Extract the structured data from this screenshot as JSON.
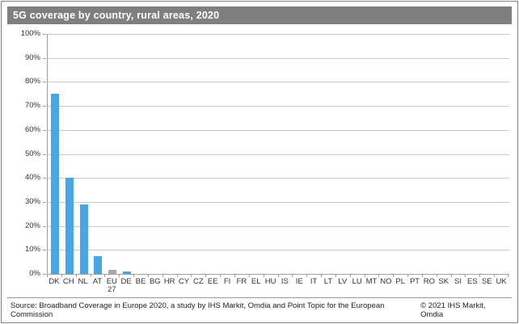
{
  "title": "5G coverage by country, rural areas, 2020",
  "footer": {
    "source": "Source: Broadband Coverage in Europe 2020, a study by IHS Markit, Omdia and Point Topic for the European Commission",
    "copyright": "© 2021 IHS Markit, Omdia"
  },
  "colors": {
    "title_bar_bg": "#7f7f7f",
    "title_text": "#ffffff",
    "bar_default": "#47a5e8",
    "bar_highlight": "#a8a8a8",
    "gridline": "#c9c9c9",
    "axis": "#a0a0a0",
    "label_text": "#333333",
    "outer_border": "#808080"
  },
  "chart_data": {
    "type": "bar",
    "title": "5G coverage by country, rural areas, 2020",
    "categories": [
      "DK",
      "CH",
      "NL",
      "AT",
      "EU 27",
      "DE",
      "BE",
      "BG",
      "HR",
      "CY",
      "CZ",
      "EE",
      "FI",
      "FR",
      "EL",
      "HU",
      "IS",
      "IE",
      "IT",
      "LT",
      "LV",
      "LU",
      "MT",
      "NO",
      "PL",
      "PT",
      "RO",
      "SK",
      "SI",
      "ES",
      "SE",
      "UK"
    ],
    "values": [
      75,
      40,
      29,
      7.5,
      1.8,
      1,
      0,
      0,
      0,
      0,
      0,
      0,
      0,
      0,
      0,
      0,
      0,
      0,
      0,
      0,
      0,
      0,
      0,
      0,
      0,
      0,
      0,
      0,
      0,
      0,
      0,
      0
    ],
    "highlight_category": "EU 27",
    "xlabel": "",
    "ylabel": "",
    "ylim": [
      0,
      100
    ],
    "ytick_values": [
      100,
      90,
      80,
      70,
      60,
      50,
      40,
      30,
      20,
      10,
      0
    ],
    "ytick_labels": [
      "100%",
      "90%",
      "80%",
      "70%",
      "60%",
      "50%",
      "40%",
      "30%",
      "20%",
      "10%",
      "0%"
    ],
    "grid": true,
    "legend": false
  }
}
